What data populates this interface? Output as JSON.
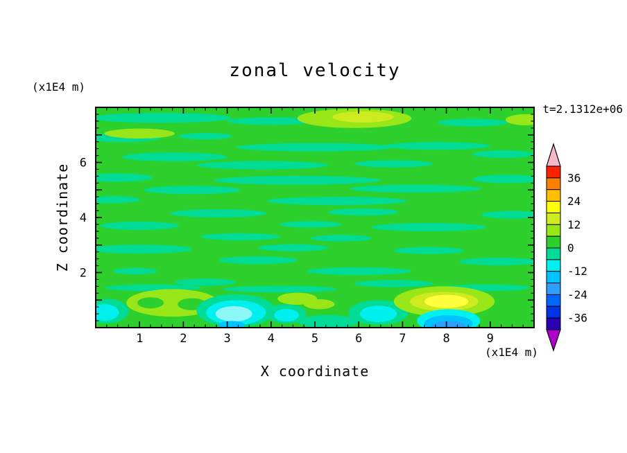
{
  "title": "zonal velocity",
  "time_label": "t=2.1312e+06",
  "x_axis": {
    "label": "X coordinate",
    "units": "(x1E4 m)",
    "min": 0,
    "max": 10,
    "major_ticks": [
      1,
      2,
      3,
      4,
      5,
      6,
      7,
      8,
      9
    ],
    "tick_labels": [
      "1",
      "2",
      "3",
      "4",
      "5",
      "6",
      "7",
      "8",
      "9"
    ],
    "minor_step": 0.25
  },
  "y_axis": {
    "label": "Z coordinate",
    "units": "(x1E4 m)",
    "min": 0,
    "max": 8,
    "major_ticks": [
      1,
      2,
      3,
      4,
      5,
      6,
      7
    ],
    "labeled_ticks": [
      2,
      4,
      6
    ],
    "tick_labels": [
      "2",
      "4",
      "6"
    ],
    "minor_step": 0.25
  },
  "colorbar": {
    "tick_labels": [
      "36",
      "24",
      "12",
      "0",
      "-12",
      "-24",
      "-36"
    ],
    "band_colors_top_to_bottom": [
      "#ff2200",
      "#ff8000",
      "#ffbf00",
      "#ffff00",
      "#cdeb1e",
      "#99e619",
      "#2ed02e",
      "#00db96",
      "#00f0f0",
      "#00c3ff",
      "#2e9fff",
      "#0066ff",
      "#0033e6",
      "#2a00b3"
    ],
    "arrow_top_color": "#f5b8c8",
    "arrow_bottom_color": "#b000cc"
  },
  "chart_data": {
    "type": "heatmap",
    "title": "zonal velocity",
    "annotation": "t=2.1312e+06",
    "xlabel": "X coordinate (x1E4 m)",
    "ylabel": "Z coordinate (x1E4 m)",
    "xlim": [
      0,
      10
    ],
    "ylim": [
      0,
      8
    ],
    "contour_levels": [
      -42,
      -36,
      -30,
      -24,
      -18,
      -12,
      -6,
      0,
      6,
      12,
      18,
      24,
      30,
      36,
      42
    ],
    "colorbar_labels": [
      36,
      24,
      12,
      0,
      -12,
      -24,
      -36
    ],
    "legend_position": "right",
    "grid": false,
    "palette": {
      "green": "#2ed02e",
      "teal": "#00db96",
      "chartreuse": "#99e619",
      "yellowgreen": "#cdeb1e",
      "yellow": "#ffff3d",
      "cyan": "#00f0f0",
      "lightcyan": "#8ef7f7",
      "skyblue": "#00c3ff",
      "blue": "#2e9fff"
    },
    "background_value_band": "0 to 6 (green)",
    "features": [
      [
        1.5,
        7.62,
        1.6,
        0.18,
        "teal"
      ],
      [
        4.0,
        7.5,
        1.0,
        0.14,
        "teal"
      ],
      [
        8.6,
        7.45,
        0.8,
        0.14,
        "teal"
      ],
      [
        0.6,
        6.9,
        0.9,
        0.16,
        "teal"
      ],
      [
        2.5,
        6.95,
        0.6,
        0.12,
        "teal"
      ],
      [
        5.0,
        6.55,
        1.8,
        0.15,
        "teal"
      ],
      [
        7.8,
        6.6,
        1.2,
        0.14,
        "teal"
      ],
      [
        1.8,
        6.2,
        1.2,
        0.16,
        "teal"
      ],
      [
        9.3,
        6.3,
        0.7,
        0.14,
        "teal"
      ],
      [
        3.8,
        5.9,
        1.5,
        0.15,
        "teal"
      ],
      [
        6.8,
        5.95,
        0.9,
        0.13,
        "teal"
      ],
      [
        0.5,
        5.45,
        0.8,
        0.15,
        "teal"
      ],
      [
        4.6,
        5.35,
        1.9,
        0.16,
        "teal"
      ],
      [
        9.4,
        5.4,
        0.8,
        0.15,
        "teal"
      ],
      [
        2.2,
        5.0,
        1.1,
        0.15,
        "teal"
      ],
      [
        7.3,
        5.05,
        1.5,
        0.14,
        "teal"
      ],
      [
        5.5,
        4.6,
        1.6,
        0.15,
        "teal"
      ],
      [
        0.4,
        4.65,
        0.6,
        0.13,
        "teal"
      ],
      [
        2.8,
        4.15,
        1.1,
        0.15,
        "teal"
      ],
      [
        6.1,
        4.2,
        0.8,
        0.13,
        "teal"
      ],
      [
        9.5,
        4.1,
        0.7,
        0.14,
        "teal"
      ],
      [
        1.0,
        3.7,
        0.9,
        0.15,
        "teal"
      ],
      [
        4.9,
        3.75,
        0.7,
        0.12,
        "teal"
      ],
      [
        7.6,
        3.65,
        1.3,
        0.15,
        "teal"
      ],
      [
        3.3,
        3.3,
        0.9,
        0.13,
        "teal"
      ],
      [
        5.6,
        3.25,
        0.7,
        0.12,
        "teal"
      ],
      [
        1.0,
        2.85,
        1.2,
        0.16,
        "teal"
      ],
      [
        4.5,
        2.9,
        0.8,
        0.13,
        "teal"
      ],
      [
        7.6,
        2.8,
        0.8,
        0.13,
        "teal"
      ],
      [
        3.7,
        2.45,
        0.9,
        0.14,
        "teal"
      ],
      [
        9.2,
        2.4,
        0.9,
        0.14,
        "teal"
      ],
      [
        0.9,
        2.05,
        0.5,
        0.12,
        "teal"
      ],
      [
        6.0,
        2.05,
        1.2,
        0.14,
        "teal"
      ],
      [
        2.5,
        1.65,
        0.7,
        0.13,
        "teal"
      ],
      [
        6.8,
        1.6,
        0.9,
        0.13,
        "teal"
      ],
      [
        1.3,
        1.45,
        1.1,
        0.12,
        "teal"
      ],
      [
        4.2,
        1.4,
        1.3,
        0.12,
        "teal"
      ],
      [
        8.9,
        1.45,
        1.0,
        0.12,
        "teal"
      ],
      [
        5.9,
        7.6,
        1.3,
        0.35,
        "chartreuse"
      ],
      [
        6.1,
        7.65,
        0.7,
        0.2,
        "yellowgreen"
      ],
      [
        1.0,
        7.05,
        0.8,
        0.18,
        "chartreuse"
      ],
      [
        9.8,
        7.55,
        0.45,
        0.2,
        "chartreuse"
      ],
      [
        0.25,
        0.6,
        0.5,
        0.45,
        "teal"
      ],
      [
        0.2,
        0.55,
        0.33,
        0.3,
        "cyan"
      ],
      [
        1.75,
        0.9,
        1.05,
        0.5,
        "chartreuse"
      ],
      [
        1.25,
        0.9,
        0.3,
        0.2,
        "green"
      ],
      [
        2.2,
        0.85,
        0.33,
        0.22,
        "green"
      ],
      [
        3.2,
        0.62,
        0.9,
        0.6,
        "teal"
      ],
      [
        3.2,
        0.55,
        0.68,
        0.45,
        "cyan"
      ],
      [
        3.15,
        0.5,
        0.42,
        0.28,
        "lightcyan"
      ],
      [
        3.1,
        0.1,
        0.3,
        0.14,
        "skyblue"
      ],
      [
        4.35,
        0.5,
        0.45,
        0.35,
        "teal"
      ],
      [
        4.35,
        0.45,
        0.28,
        0.23,
        "cyan"
      ],
      [
        4.6,
        1.05,
        0.45,
        0.22,
        "chartreuse"
      ],
      [
        5.1,
        0.85,
        0.35,
        0.18,
        "chartreuse"
      ],
      [
        5.3,
        0.22,
        0.7,
        0.24,
        "teal"
      ],
      [
        6.45,
        0.55,
        0.68,
        0.45,
        "teal"
      ],
      [
        6.45,
        0.5,
        0.42,
        0.3,
        "cyan"
      ],
      [
        7.95,
        0.95,
        1.15,
        0.55,
        "chartreuse"
      ],
      [
        7.95,
        0.95,
        0.78,
        0.35,
        "yellowgreen"
      ],
      [
        8.0,
        0.95,
        0.5,
        0.24,
        "yellow"
      ],
      [
        8.05,
        0.25,
        0.72,
        0.42,
        "cyan"
      ],
      [
        8.05,
        0.15,
        0.55,
        0.3,
        "skyblue"
      ],
      [
        8.05,
        0.06,
        0.38,
        0.18,
        "blue"
      ]
    ]
  }
}
